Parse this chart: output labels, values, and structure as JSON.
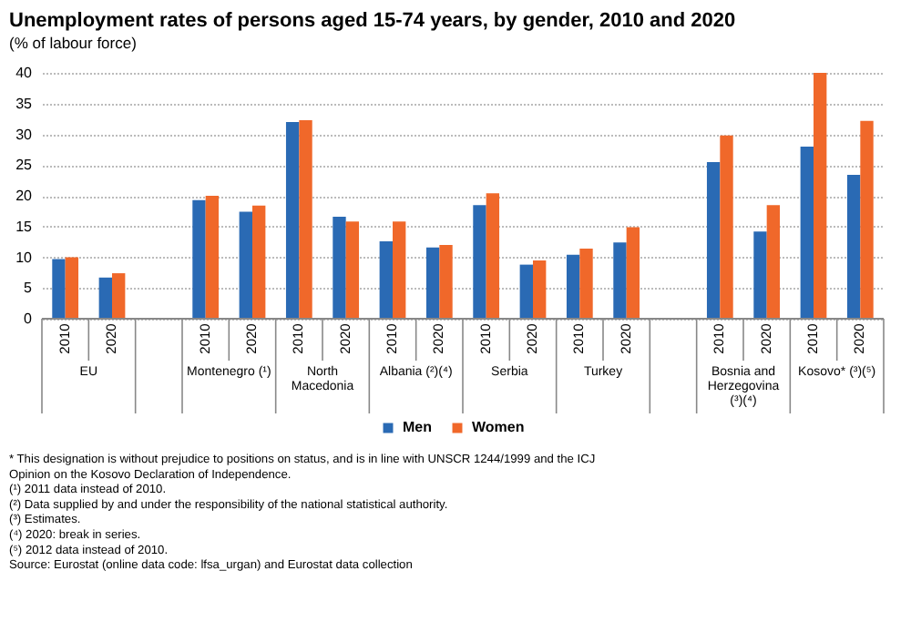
{
  "chart_data": {
    "type": "bar",
    "title": "Unemployment rates of persons aged 15-74 years, by gender, 2010 and 2020",
    "subtitle": "(% of labour force)",
    "categories": [
      "2010",
      "2020",
      null,
      "2010",
      "2020",
      "2010",
      "2020",
      "2010",
      "2020",
      "2010",
      "2020",
      "2010",
      "2020",
      null,
      "2010",
      "2020",
      "2010",
      "2020"
    ],
    "series": [
      {
        "name": "Men",
        "color": "#2a6ab4",
        "values": [
          9.7,
          6.7,
          null,
          19.3,
          17.4,
          32.0,
          16.6,
          12.6,
          11.6,
          18.5,
          8.8,
          10.4,
          12.4,
          null,
          25.5,
          14.2,
          28.0,
          23.4
        ]
      },
      {
        "name": "Women",
        "color": "#f0682a",
        "values": [
          10.0,
          7.4,
          null,
          20.0,
          18.4,
          32.3,
          15.8,
          15.8,
          12.0,
          20.4,
          9.5,
          11.4,
          14.9,
          null,
          29.8,
          18.5,
          40.0,
          32.2
        ]
      }
    ],
    "ylim": [
      0,
      40
    ],
    "yticks": [
      0,
      5,
      10,
      15,
      20,
      25,
      30,
      35,
      40
    ],
    "grid": "y",
    "legend": "bottom",
    "annotations": [
      "EU",
      "Montenegro (¹)",
      "North Macedonia",
      "Albania (²)(⁴)",
      "Serbia",
      "Turkey",
      "Bosnia and Herzegovina (³)(⁴)",
      "Kosovo* (³)(⁵)",
      "* This designation is without prejudice to positions on status, and is in line with UNSCR 1244/1999 and the ICJ Opinion on the Kosovo Declaration of Independence.",
      "(¹) 2011 data instead of 2010.",
      "(²) Data supplied by and under the responsibility of the national statistical authority.",
      "(³) Estimates.",
      "(⁴) 2020: break in series.",
      "(⁵) 2012 data instead of 2010.",
      "Source: Eurostat (online data code: lfsa_urgan) and Eurostat data collection"
    ]
  }
}
